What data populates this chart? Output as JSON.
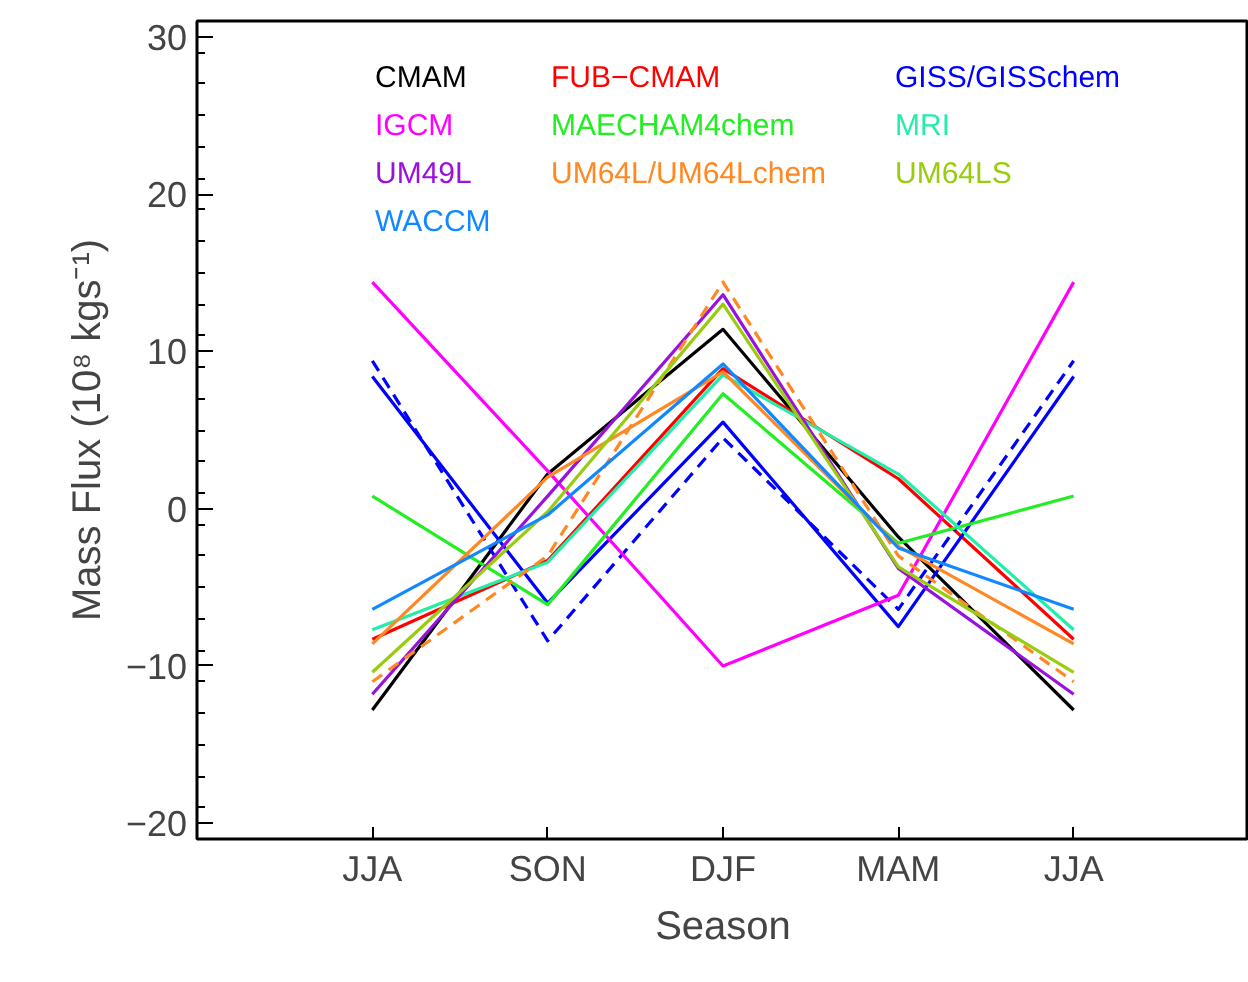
{
  "chart_data": {
    "type": "line",
    "xlabel": "Season",
    "ylabel": "Mass Flux (10⁸ kgs⁻¹)",
    "categories": [
      "JJA",
      "SON",
      "DJF",
      "MAM",
      "JJA"
    ],
    "ylim": [
      -21,
      31
    ],
    "yticks": [
      -20,
      -10,
      0,
      10,
      20,
      30
    ],
    "grid": false,
    "legend": "top",
    "line_style": "solid",
    "series": [
      {
        "name": "CMAM",
        "color": "#000000",
        "values": [
          -12.8,
          2.2,
          11.4,
          -1.8,
          -12.8
        ]
      },
      {
        "name": "FUB−CMAM",
        "color": "#ff0000",
        "values": [
          -8.3,
          -3.3,
          8.9,
          1.9,
          -8.3
        ]
      },
      {
        "name": "GISS/GISSchem",
        "color": "#0000ff",
        "values": [
          8.4,
          -6.0,
          5.5,
          -7.5,
          8.4
        ]
      },
      {
        "color": "#0000ff",
        "line_style": "dashed",
        "values": [
          9.4,
          -8.4,
          4.5,
          -6.4,
          9.4
        ]
      },
      {
        "name": "IGCM",
        "color": "#ff00ff",
        "values": [
          14.4,
          2.4,
          -10.0,
          -5.5,
          14.4
        ]
      },
      {
        "name": "MAECHAM4chem",
        "color": "#22ee22",
        "values": [
          0.8,
          -6.1,
          7.3,
          -2.2,
          0.8
        ]
      },
      {
        "name": "MRI",
        "color": "#22eeaa",
        "values": [
          -7.7,
          -3.4,
          8.5,
          2.2,
          -7.7
        ]
      },
      {
        "name": "UM49L",
        "color": "#9911dd",
        "values": [
          -11.8,
          0.8,
          13.6,
          -3.8,
          -11.8
        ]
      },
      {
        "name": "UM64L/UM64Lchem",
        "color": "#ff8822",
        "values": [
          -8.6,
          2.0,
          8.7,
          -2.4,
          -8.6
        ]
      },
      {
        "color": "#ff8822",
        "line_style": "dashed",
        "values": [
          -11.0,
          -3.0,
          14.4,
          -3.0,
          -11.0
        ]
      },
      {
        "name": "UM64LS",
        "color": "#99cc11",
        "values": [
          -10.4,
          -0.2,
          13.0,
          -3.7,
          -10.4
        ]
      },
      {
        "name": "WACCM",
        "color": "#1188ff",
        "values": [
          -6.4,
          -0.4,
          9.2,
          -2.5,
          -6.4
        ]
      }
    ]
  }
}
